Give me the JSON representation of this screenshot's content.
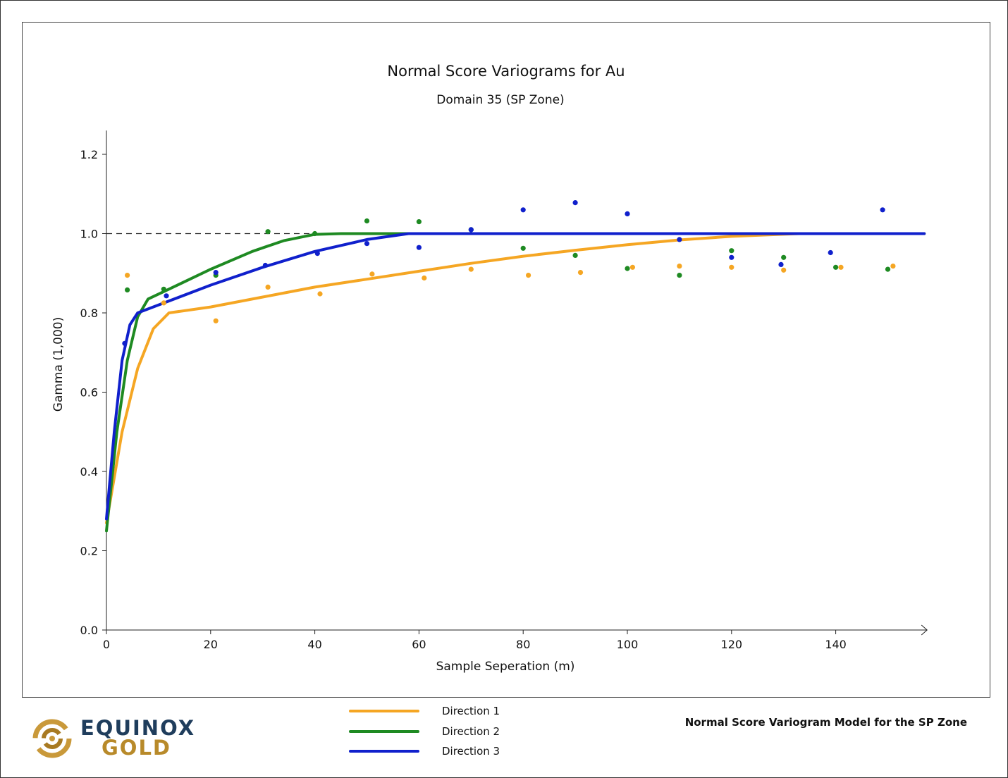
{
  "chart_data": {
    "type": "scatter",
    "title": "Normal Score Variograms for Au",
    "subtitle": "Domain 35 (SP Zone)",
    "xlabel": "Sample Seperation (m)",
    "ylabel": "Gamma (1,000)",
    "xlim": [
      0,
      157
    ],
    "ylim": [
      0,
      1.26
    ],
    "xticks": [
      0,
      20,
      40,
      60,
      80,
      100,
      120,
      140
    ],
    "yticks": [
      0.0,
      0.2,
      0.4,
      0.6,
      0.8,
      1.0,
      1.2
    ],
    "ytick_labels": [
      "0.0",
      "0.2",
      "0.4",
      "0.6",
      "0.8",
      "1.0",
      "1.2"
    ],
    "sill": 1.0,
    "series": [
      {
        "name": "Direction 1",
        "color": "#f5a623",
        "points": [
          [
            4,
            0.895
          ],
          [
            11,
            0.825
          ],
          [
            21,
            0.78
          ],
          [
            31,
            0.865
          ],
          [
            41,
            0.848
          ],
          [
            51,
            0.898
          ],
          [
            61,
            0.888
          ],
          [
            70,
            0.91
          ],
          [
            81,
            0.895
          ],
          [
            91,
            0.902
          ],
          [
            101,
            0.915
          ],
          [
            110,
            0.918
          ],
          [
            120,
            0.915
          ],
          [
            130,
            0.908
          ],
          [
            141,
            0.915
          ],
          [
            151,
            0.918
          ]
        ],
        "model": [
          [
            0,
            0.27
          ],
          [
            3,
            0.5
          ],
          [
            6,
            0.66
          ],
          [
            9,
            0.76
          ],
          [
            12,
            0.8
          ],
          [
            20,
            0.815
          ],
          [
            30,
            0.84
          ],
          [
            40,
            0.865
          ],
          [
            50,
            0.885
          ],
          [
            60,
            0.905
          ],
          [
            70,
            0.925
          ],
          [
            80,
            0.943
          ],
          [
            90,
            0.958
          ],
          [
            100,
            0.972
          ],
          [
            110,
            0.984
          ],
          [
            120,
            0.993
          ],
          [
            133,
            1.0
          ],
          [
            157,
            1.0
          ]
        ]
      },
      {
        "name": "Direction 2",
        "color": "#1e8a22",
        "points": [
          [
            4,
            0.858
          ],
          [
            11,
            0.86
          ],
          [
            21,
            0.895
          ],
          [
            31,
            1.005
          ],
          [
            40,
            1.0
          ],
          [
            50,
            1.032
          ],
          [
            60,
            1.03
          ],
          [
            70,
            1.01
          ],
          [
            80,
            0.963
          ],
          [
            90,
            0.945
          ],
          [
            100,
            0.912
          ],
          [
            110,
            0.895
          ],
          [
            120,
            0.957
          ],
          [
            130,
            0.94
          ],
          [
            140,
            0.915
          ],
          [
            150,
            0.91
          ]
        ],
        "model": [
          [
            0,
            0.25
          ],
          [
            2,
            0.5
          ],
          [
            4,
            0.68
          ],
          [
            6,
            0.79
          ],
          [
            8,
            0.835
          ],
          [
            12,
            0.86
          ],
          [
            20,
            0.91
          ],
          [
            28,
            0.955
          ],
          [
            34,
            0.982
          ],
          [
            40,
            0.998
          ],
          [
            45,
            1.0
          ],
          [
            157,
            1.0
          ]
        ]
      },
      {
        "name": "Direction 3",
        "color": "#1020cc",
        "points": [
          [
            3.5,
            0.723
          ],
          [
            11.5,
            0.843
          ],
          [
            21,
            0.902
          ],
          [
            30.5,
            0.92
          ],
          [
            40.5,
            0.95
          ],
          [
            50,
            0.975
          ],
          [
            60,
            0.965
          ],
          [
            70,
            1.01
          ],
          [
            80,
            1.06
          ],
          [
            90,
            1.078
          ],
          [
            100,
            1.05
          ],
          [
            110,
            0.985
          ],
          [
            120,
            0.94
          ],
          [
            129.5,
            0.922
          ],
          [
            139,
            0.952
          ],
          [
            149,
            1.06
          ]
        ],
        "model": [
          [
            0,
            0.28
          ],
          [
            1.5,
            0.5
          ],
          [
            3,
            0.68
          ],
          [
            4.5,
            0.77
          ],
          [
            6,
            0.8
          ],
          [
            10,
            0.82
          ],
          [
            20,
            0.87
          ],
          [
            30,
            0.915
          ],
          [
            40,
            0.955
          ],
          [
            50,
            0.985
          ],
          [
            58,
            1.0
          ],
          [
            157,
            1.0
          ]
        ]
      }
    ],
    "legend": [
      "Direction 1",
      "Direction 2",
      "Direction 3"
    ],
    "legend_position": "bottom-center"
  },
  "caption": "Normal Score Variogram Model for the SP Zone",
  "logo": {
    "line1": "EQUINOX",
    "line2": "GOLD",
    "colors": {
      "navy": "#1f3d5c",
      "gold": "#b88a2a"
    }
  }
}
